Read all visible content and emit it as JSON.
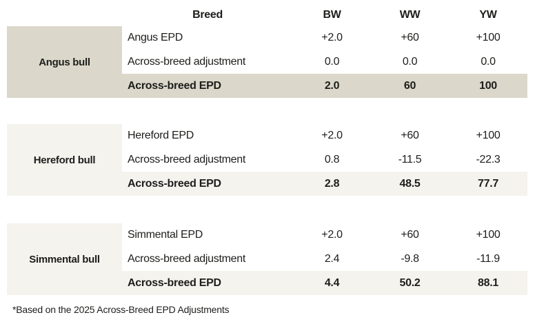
{
  "chart_data": {
    "type": "table",
    "columns": [
      "Breed",
      "BW",
      "WW",
      "YW"
    ],
    "sections": [
      {
        "label": "Angus bull",
        "rows": [
          {
            "name": "Angus EPD",
            "bw": "+2.0",
            "ww": "+60",
            "yw": "+100"
          },
          {
            "name": "Across-breed adjustment",
            "bw": "0.0",
            "ww": "0.0",
            "yw": "0.0"
          },
          {
            "name": "Across-breed EPD",
            "bw": "2.0",
            "ww": "60",
            "yw": "100"
          }
        ]
      },
      {
        "label": "Hereford bull",
        "rows": [
          {
            "name": "Hereford EPD",
            "bw": "+2.0",
            "ww": "+60",
            "yw": "+100"
          },
          {
            "name": "Across-breed adjustment",
            "bw": "0.8",
            "ww": "-11.5",
            "yw": "-22.3"
          },
          {
            "name": "Across-breed EPD",
            "bw": "2.8",
            "ww": "48.5",
            "yw": "77.7"
          }
        ]
      },
      {
        "label": "Simmental bull",
        "rows": [
          {
            "name": "Simmental EPD",
            "bw": "+2.0",
            "ww": "+60",
            "yw": "+100"
          },
          {
            "name": "Across-breed adjustment",
            "bw": "2.4",
            "ww": "-9.8",
            "yw": "-11.9"
          },
          {
            "name": "Across-breed EPD",
            "bw": "4.4",
            "ww": "50.2",
            "yw": "88.1"
          }
        ]
      }
    ],
    "footnote": "*Based on the 2025 Across-Breed EPD Adjustments",
    "layout": {
      "grid": false,
      "legend": "none"
    }
  },
  "colors": {
    "section_highlight_dark": "#dbd8cb",
    "section_highlight_light": "#f5f3ee",
    "text": "#1d1d1b",
    "background": "#ffffff"
  }
}
